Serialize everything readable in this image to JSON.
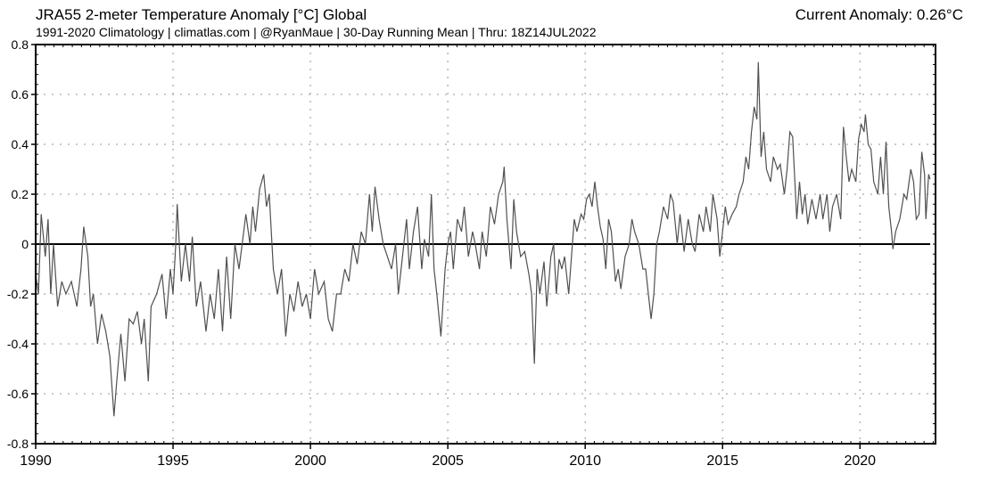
{
  "header": {
    "title": "JRA55 2-meter Temperature Anomaly [°C] Global",
    "subtitle": "1991-2020 Climatology | climatlas.com | @RyanMaue | 30-Day Running Mean | Thru: 18Z14JUL2022",
    "current_anomaly": "Current Anomaly: 0.26°C"
  },
  "chart_data": {
    "type": "line",
    "title": "JRA55 2-meter Temperature Anomaly [°C] Global",
    "xlabel": "",
    "ylabel": "",
    "xlim": [
      1990,
      2022.75
    ],
    "ylim": [
      -0.8,
      0.8
    ],
    "grid": true,
    "legend": "none",
    "line_color": "#505050",
    "zero_line_color": "#000000",
    "x_ticks": [
      "1990",
      "1995",
      "2000",
      "2005",
      "2010",
      "2015",
      "2020"
    ],
    "y_ticks": [
      "0.8",
      "0.6",
      "0.4",
      "0.2",
      "0",
      "-0.2",
      "-0.4",
      "-0.6",
      "-0.8"
    ],
    "series": [
      {
        "name": "30-Day Running Mean Anomaly",
        "points": [
          [
            1990.0,
            -0.12
          ],
          [
            1990.1,
            -0.2
          ],
          [
            1990.2,
            0.12
          ],
          [
            1990.35,
            -0.05
          ],
          [
            1990.45,
            0.1
          ],
          [
            1990.55,
            -0.2
          ],
          [
            1990.65,
            0.0
          ],
          [
            1990.8,
            -0.25
          ],
          [
            1990.95,
            -0.15
          ],
          [
            1991.1,
            -0.2
          ],
          [
            1991.3,
            -0.15
          ],
          [
            1991.5,
            -0.25
          ],
          [
            1991.65,
            -0.1
          ],
          [
            1991.75,
            0.07
          ],
          [
            1991.9,
            -0.05
          ],
          [
            1992.0,
            -0.25
          ],
          [
            1992.1,
            -0.2
          ],
          [
            1992.25,
            -0.4
          ],
          [
            1992.4,
            -0.28
          ],
          [
            1992.55,
            -0.35
          ],
          [
            1992.7,
            -0.45
          ],
          [
            1992.85,
            -0.69
          ],
          [
            1992.95,
            -0.55
          ],
          [
            1993.1,
            -0.36
          ],
          [
            1993.25,
            -0.55
          ],
          [
            1993.4,
            -0.3
          ],
          [
            1993.55,
            -0.32
          ],
          [
            1993.7,
            -0.27
          ],
          [
            1993.85,
            -0.4
          ],
          [
            1993.95,
            -0.3
          ],
          [
            1994.1,
            -0.55
          ],
          [
            1994.2,
            -0.25
          ],
          [
            1994.4,
            -0.2
          ],
          [
            1994.6,
            -0.12
          ],
          [
            1994.75,
            -0.3
          ],
          [
            1994.9,
            -0.1
          ],
          [
            1995.0,
            -0.2
          ],
          [
            1995.1,
            0.0
          ],
          [
            1995.15,
            0.16
          ],
          [
            1995.3,
            -0.15
          ],
          [
            1995.45,
            0.0
          ],
          [
            1995.6,
            -0.15
          ],
          [
            1995.7,
            0.03
          ],
          [
            1995.85,
            -0.25
          ],
          [
            1996.0,
            -0.15
          ],
          [
            1996.2,
            -0.35
          ],
          [
            1996.35,
            -0.2
          ],
          [
            1996.5,
            -0.3
          ],
          [
            1996.65,
            -0.1
          ],
          [
            1996.8,
            -0.35
          ],
          [
            1996.95,
            -0.05
          ],
          [
            1997.1,
            -0.3
          ],
          [
            1997.25,
            0.0
          ],
          [
            1997.4,
            -0.1
          ],
          [
            1997.55,
            0.03
          ],
          [
            1997.65,
            0.12
          ],
          [
            1997.8,
            0.0
          ],
          [
            1997.9,
            0.15
          ],
          [
            1998.0,
            0.05
          ],
          [
            1998.15,
            0.22
          ],
          [
            1998.3,
            0.28
          ],
          [
            1998.4,
            0.15
          ],
          [
            1998.5,
            0.2
          ],
          [
            1998.65,
            -0.1
          ],
          [
            1998.8,
            -0.2
          ],
          [
            1998.95,
            -0.1
          ],
          [
            1999.1,
            -0.37
          ],
          [
            1999.25,
            -0.2
          ],
          [
            1999.4,
            -0.27
          ],
          [
            1999.55,
            -0.15
          ],
          [
            1999.7,
            -0.25
          ],
          [
            1999.85,
            -0.2
          ],
          [
            2000.0,
            -0.3
          ],
          [
            2000.15,
            -0.1
          ],
          [
            2000.3,
            -0.2
          ],
          [
            2000.5,
            -0.15
          ],
          [
            2000.65,
            -0.3
          ],
          [
            2000.8,
            -0.35
          ],
          [
            2000.95,
            -0.2
          ],
          [
            2001.1,
            -0.2
          ],
          [
            2001.25,
            -0.1
          ],
          [
            2001.4,
            -0.15
          ],
          [
            2001.55,
            0.0
          ],
          [
            2001.7,
            -0.08
          ],
          [
            2001.85,
            0.05
          ],
          [
            2002.0,
            0.0
          ],
          [
            2002.15,
            0.2
          ],
          [
            2002.25,
            0.05
          ],
          [
            2002.35,
            0.23
          ],
          [
            2002.5,
            0.1
          ],
          [
            2002.65,
            0.0
          ],
          [
            2002.8,
            -0.05
          ],
          [
            2002.95,
            -0.1
          ],
          [
            2003.1,
            0.0
          ],
          [
            2003.2,
            -0.2
          ],
          [
            2003.35,
            -0.05
          ],
          [
            2003.5,
            0.1
          ],
          [
            2003.6,
            -0.1
          ],
          [
            2003.75,
            0.05
          ],
          [
            2003.9,
            0.15
          ],
          [
            2004.05,
            -0.1
          ],
          [
            2004.15,
            0.02
          ],
          [
            2004.3,
            -0.05
          ],
          [
            2004.4,
            0.2
          ],
          [
            2004.5,
            -0.1
          ],
          [
            2004.6,
            -0.2
          ],
          [
            2004.75,
            -0.37
          ],
          [
            2004.9,
            -0.1
          ],
          [
            2005.0,
            0.0
          ],
          [
            2005.1,
            0.05
          ],
          [
            2005.2,
            -0.1
          ],
          [
            2005.35,
            0.1
          ],
          [
            2005.5,
            0.05
          ],
          [
            2005.6,
            0.15
          ],
          [
            2005.75,
            -0.05
          ],
          [
            2005.9,
            0.05
          ],
          [
            2006.0,
            0.0
          ],
          [
            2006.15,
            -0.1
          ],
          [
            2006.25,
            0.05
          ],
          [
            2006.4,
            -0.05
          ],
          [
            2006.55,
            0.15
          ],
          [
            2006.7,
            0.08
          ],
          [
            2006.85,
            0.2
          ],
          [
            2007.0,
            0.25
          ],
          [
            2007.05,
            0.31
          ],
          [
            2007.15,
            0.1
          ],
          [
            2007.3,
            -0.1
          ],
          [
            2007.4,
            0.18
          ],
          [
            2007.5,
            0.05
          ],
          [
            2007.65,
            -0.05
          ],
          [
            2007.8,
            -0.03
          ],
          [
            2007.95,
            -0.12
          ],
          [
            2008.05,
            -0.2
          ],
          [
            2008.15,
            -0.48
          ],
          [
            2008.25,
            -0.1
          ],
          [
            2008.35,
            -0.2
          ],
          [
            2008.5,
            -0.07
          ],
          [
            2008.6,
            -0.25
          ],
          [
            2008.75,
            -0.05
          ],
          [
            2008.85,
            0.0
          ],
          [
            2008.95,
            -0.2
          ],
          [
            2009.05,
            -0.06
          ],
          [
            2009.15,
            -0.1
          ],
          [
            2009.25,
            -0.05
          ],
          [
            2009.4,
            -0.2
          ],
          [
            2009.5,
            -0.05
          ],
          [
            2009.6,
            0.1
          ],
          [
            2009.7,
            0.05
          ],
          [
            2009.85,
            0.12
          ],
          [
            2009.95,
            0.1
          ],
          [
            2010.05,
            0.18
          ],
          [
            2010.15,
            0.2
          ],
          [
            2010.25,
            0.15
          ],
          [
            2010.35,
            0.25
          ],
          [
            2010.45,
            0.15
          ],
          [
            2010.55,
            0.07
          ],
          [
            2010.65,
            0.02
          ],
          [
            2010.75,
            -0.1
          ],
          [
            2010.85,
            0.1
          ],
          [
            2010.95,
            0.05
          ],
          [
            2011.1,
            -0.15
          ],
          [
            2011.2,
            -0.1
          ],
          [
            2011.3,
            -0.18
          ],
          [
            2011.45,
            -0.05
          ],
          [
            2011.6,
            0.0
          ],
          [
            2011.7,
            0.1
          ],
          [
            2011.8,
            0.05
          ],
          [
            2011.95,
            0.0
          ],
          [
            2012.1,
            -0.1
          ],
          [
            2012.2,
            -0.1
          ],
          [
            2012.3,
            -0.2
          ],
          [
            2012.4,
            -0.3
          ],
          [
            2012.5,
            -0.2
          ],
          [
            2012.6,
            0.0
          ],
          [
            2012.7,
            0.05
          ],
          [
            2012.85,
            0.15
          ],
          [
            2013.0,
            0.1
          ],
          [
            2013.1,
            0.2
          ],
          [
            2013.2,
            0.17
          ],
          [
            2013.35,
            0.0
          ],
          [
            2013.45,
            0.12
          ],
          [
            2013.6,
            -0.03
          ],
          [
            2013.75,
            0.1
          ],
          [
            2013.9,
            0.0
          ],
          [
            2014.0,
            -0.03
          ],
          [
            2014.15,
            0.12
          ],
          [
            2014.3,
            0.05
          ],
          [
            2014.4,
            0.15
          ],
          [
            2014.55,
            0.05
          ],
          [
            2014.65,
            0.2
          ],
          [
            2014.8,
            0.1
          ],
          [
            2014.9,
            -0.05
          ],
          [
            2015.0,
            0.05
          ],
          [
            2015.1,
            0.15
          ],
          [
            2015.2,
            0.08
          ],
          [
            2015.35,
            0.12
          ],
          [
            2015.5,
            0.15
          ],
          [
            2015.6,
            0.2
          ],
          [
            2015.75,
            0.25
          ],
          [
            2015.85,
            0.35
          ],
          [
            2015.95,
            0.3
          ],
          [
            2016.05,
            0.45
          ],
          [
            2016.15,
            0.55
          ],
          [
            2016.25,
            0.5
          ],
          [
            2016.3,
            0.73
          ],
          [
            2016.4,
            0.35
          ],
          [
            2016.5,
            0.45
          ],
          [
            2016.6,
            0.3
          ],
          [
            2016.75,
            0.25
          ],
          [
            2016.85,
            0.35
          ],
          [
            2017.0,
            0.3
          ],
          [
            2017.1,
            0.32
          ],
          [
            2017.25,
            0.2
          ],
          [
            2017.35,
            0.3
          ],
          [
            2017.45,
            0.45
          ],
          [
            2017.55,
            0.43
          ],
          [
            2017.7,
            0.1
          ],
          [
            2017.8,
            0.25
          ],
          [
            2017.9,
            0.12
          ],
          [
            2018.0,
            0.2
          ],
          [
            2018.1,
            0.08
          ],
          [
            2018.25,
            0.18
          ],
          [
            2018.4,
            0.1
          ],
          [
            2018.55,
            0.2
          ],
          [
            2018.65,
            0.1
          ],
          [
            2018.8,
            0.2
          ],
          [
            2018.9,
            0.05
          ],
          [
            2019.0,
            0.15
          ],
          [
            2019.15,
            0.2
          ],
          [
            2019.3,
            0.1
          ],
          [
            2019.4,
            0.47
          ],
          [
            2019.5,
            0.35
          ],
          [
            2019.6,
            0.25
          ],
          [
            2019.7,
            0.3
          ],
          [
            2019.85,
            0.25
          ],
          [
            2019.95,
            0.42
          ],
          [
            2020.05,
            0.48
          ],
          [
            2020.15,
            0.45
          ],
          [
            2020.2,
            0.52
          ],
          [
            2020.3,
            0.4
          ],
          [
            2020.4,
            0.38
          ],
          [
            2020.5,
            0.25
          ],
          [
            2020.65,
            0.2
          ],
          [
            2020.75,
            0.35
          ],
          [
            2020.85,
            0.2
          ],
          [
            2020.95,
            0.41
          ],
          [
            2021.05,
            0.15
          ],
          [
            2021.15,
            0.05
          ],
          [
            2021.2,
            -0.02
          ],
          [
            2021.3,
            0.05
          ],
          [
            2021.45,
            0.1
          ],
          [
            2021.6,
            0.2
          ],
          [
            2021.7,
            0.18
          ],
          [
            2021.85,
            0.3
          ],
          [
            2021.95,
            0.25
          ],
          [
            2022.05,
            0.1
          ],
          [
            2022.15,
            0.12
          ],
          [
            2022.25,
            0.37
          ],
          [
            2022.35,
            0.28
          ],
          [
            2022.4,
            0.1
          ],
          [
            2022.5,
            0.28
          ],
          [
            2022.55,
            0.26
          ]
        ]
      }
    ]
  }
}
